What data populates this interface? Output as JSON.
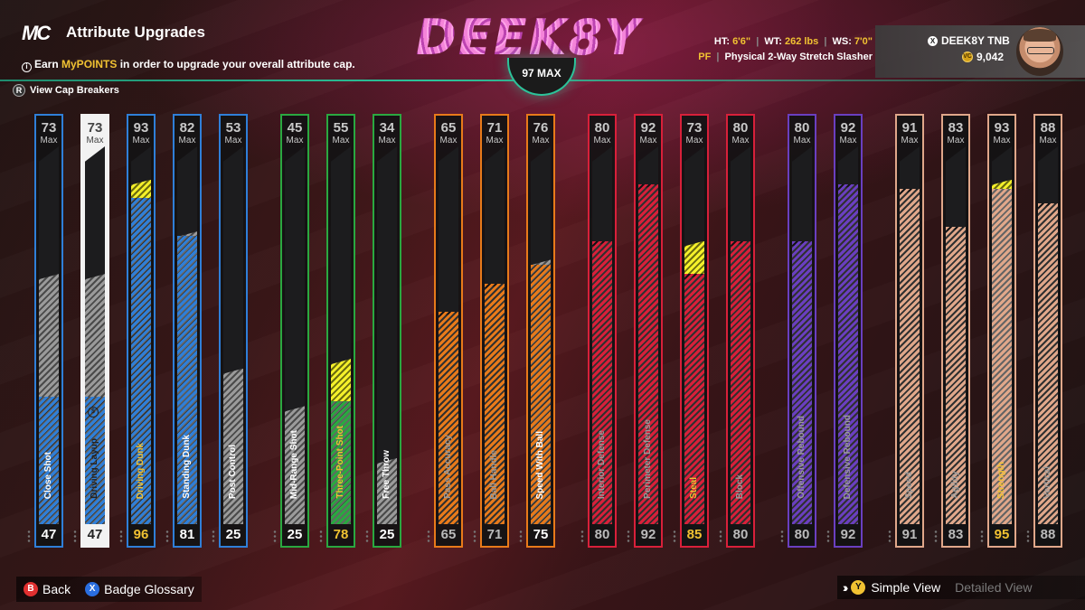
{
  "header": {
    "logo": "MC",
    "title": "Attribute Upgrades",
    "subtitle_pre": "Earn ",
    "subtitle_highlight": "MyPOINTS",
    "subtitle_post": " in order to upgrade your overall attribute cap.",
    "cap_breakers": "View Cap Breakers",
    "cap_breakers_button": "R"
  },
  "brand": {
    "name": "DEEK8Y",
    "max_label": "97 MAX"
  },
  "player": {
    "ht_label": "HT:",
    "ht": "6'6\"",
    "wt_label": "WT:",
    "wt": "262 lbs",
    "ws_label": "WS:",
    "ws": "7'0\"",
    "position": "PF",
    "archetype": "Physical 2-Way Stretch Slasher",
    "gamertag": "DEEK8Y TNB",
    "vc": "9,042"
  },
  "colors": {
    "finishing": "#2f7fd8",
    "shooting": "#2aa840",
    "playmaking": "#e87a1a",
    "defense": "#d8203a",
    "rebounding": "#6a3fc0",
    "physicals": "#e0a78a",
    "upgrade": "#f4f02a",
    "gold": "#f1c232"
  },
  "attributes": [
    {
      "name": "Close Shot",
      "cap": 73,
      "current": 47,
      "group": "finishing",
      "potential": 73,
      "name_style": "normal",
      "num_style": "normal"
    },
    {
      "name": "Driving Layup",
      "cap": 73,
      "current": 47,
      "group": "finishing",
      "potential": 73,
      "selected": true,
      "name_style": "normal",
      "num_style": "normal"
    },
    {
      "name": "Driving Dunk",
      "cap": 93,
      "current": 96,
      "group": "finishing",
      "potential": 93,
      "upgrade_from": 89,
      "name_style": "gold",
      "num_style": "gold"
    },
    {
      "name": "Standing Dunk",
      "cap": 82,
      "current": 81,
      "group": "finishing",
      "potential": 82,
      "name_style": "normal",
      "num_style": "normal"
    },
    {
      "name": "Post Control",
      "cap": 53,
      "current": 25,
      "group": "finishing",
      "potential": 53,
      "name_style": "normal",
      "num_style": "normal"
    },
    {
      "name": "Mid-Range Shot",
      "cap": 45,
      "current": 25,
      "group": "shooting",
      "potential": 45,
      "name_style": "normal",
      "num_style": "normal"
    },
    {
      "name": "Three-Point Shot",
      "cap": 55,
      "current": 78,
      "group": "shooting",
      "potential": 55,
      "green_level": 46,
      "name_style": "gold",
      "num_style": "gold"
    },
    {
      "name": "Free Throw",
      "cap": 34,
      "current": 25,
      "group": "shooting",
      "potential": 34,
      "name_style": "normal",
      "num_style": "normal"
    },
    {
      "name": "Pass Accuracy",
      "cap": 65,
      "current": 65,
      "group": "playmaking",
      "potential": 65,
      "name_style": "dim",
      "num_style": "dim"
    },
    {
      "name": "Ball Handle",
      "cap": 71,
      "current": 71,
      "group": "playmaking",
      "potential": 71,
      "name_style": "dim",
      "num_style": "dim"
    },
    {
      "name": "Speed With Ball",
      "cap": 76,
      "current": 75,
      "group": "playmaking",
      "potential": 76,
      "name_style": "normal",
      "num_style": "normal"
    },
    {
      "name": "Interior Defense",
      "cap": 80,
      "current": 80,
      "group": "defense",
      "potential": 80,
      "name_style": "dim",
      "num_style": "dim"
    },
    {
      "name": "Perimeter Defense",
      "cap": 92,
      "current": 92,
      "group": "defense",
      "potential": 92,
      "name_style": "dim",
      "num_style": "dim"
    },
    {
      "name": "Steal",
      "cap": 73,
      "current": 85,
      "group": "defense",
      "potential": 73,
      "upgrade_from": 73,
      "upgrade_to": 85,
      "name_style": "gold",
      "num_style": "gold"
    },
    {
      "name": "Block",
      "cap": 80,
      "current": 80,
      "group": "defense",
      "potential": 80,
      "name_style": "dim",
      "num_style": "dim"
    },
    {
      "name": "Offensive Rebound",
      "cap": 80,
      "current": 80,
      "group": "rebounding",
      "potential": 80,
      "name_style": "dim",
      "num_style": "dim"
    },
    {
      "name": "Defensive Rebound",
      "cap": 92,
      "current": 92,
      "group": "rebounding",
      "potential": 92,
      "name_style": "dim",
      "num_style": "dim"
    },
    {
      "name": "Speed",
      "cap": 91,
      "current": 91,
      "group": "physicals",
      "potential": 91,
      "name_style": "dim",
      "num_style": "dim"
    },
    {
      "name": "Agility",
      "cap": 83,
      "current": 83,
      "group": "physicals",
      "potential": 83,
      "name_style": "dim",
      "num_style": "dim"
    },
    {
      "name": "Strength",
      "cap": 93,
      "current": 95,
      "group": "physicals",
      "potential": 93,
      "upgrade_from": 91,
      "name_style": "gold",
      "num_style": "gold"
    },
    {
      "name": "Vertical",
      "cap": 88,
      "current": 88,
      "group": "physicals",
      "potential": 88,
      "name_style": "dim",
      "num_style": "dim"
    }
  ],
  "max_label": "Max",
  "footer": {
    "back_button": "B",
    "back": "Back",
    "glossary_button": "X",
    "glossary": "Badge Glossary",
    "simple_button": "Y",
    "simple_view": "Simple View",
    "detailed_view": "Detailed View"
  }
}
